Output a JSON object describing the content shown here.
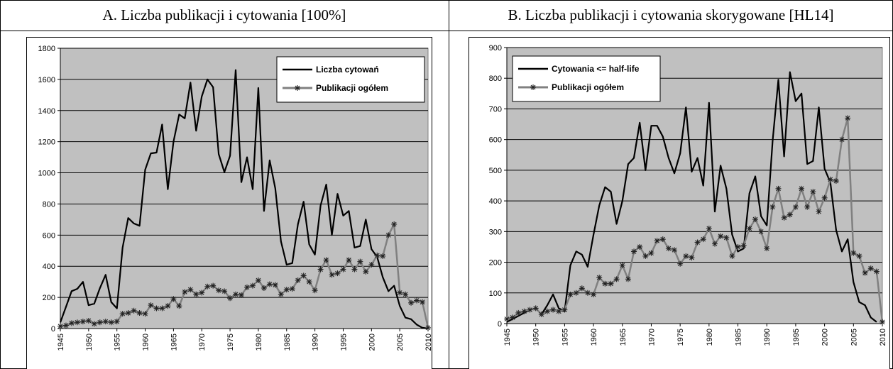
{
  "chart_data": [
    {
      "type": "line",
      "title": "A. Liczba publikacji i cytowania [100%]",
      "x": [
        1945,
        1946,
        1947,
        1948,
        1949,
        1950,
        1951,
        1952,
        1953,
        1954,
        1955,
        1956,
        1957,
        1958,
        1959,
        1960,
        1961,
        1962,
        1963,
        1964,
        1965,
        1966,
        1967,
        1968,
        1969,
        1970,
        1971,
        1972,
        1973,
        1974,
        1975,
        1976,
        1977,
        1978,
        1979,
        1980,
        1981,
        1982,
        1983,
        1984,
        1985,
        1986,
        1987,
        1988,
        1989,
        1990,
        1991,
        1992,
        1993,
        1994,
        1995,
        1996,
        1997,
        1998,
        1999,
        2000,
        2001,
        2002,
        2003,
        2004,
        2005,
        2006,
        2007,
        2008,
        2009,
        2010
      ],
      "series": [
        {
          "name": "Liczba cytowań",
          "color": "#000000",
          "marker": false,
          "values": [
            40,
            140,
            240,
            255,
            300,
            150,
            160,
            260,
            345,
            170,
            130,
            520,
            710,
            675,
            660,
            1020,
            1125,
            1130,
            1310,
            895,
            1200,
            1375,
            1350,
            1580,
            1270,
            1490,
            1600,
            1550,
            1120,
            1005,
            1110,
            1660,
            940,
            1100,
            895,
            1545,
            755,
            1080,
            900,
            560,
            410,
            420,
            670,
            815,
            540,
            475,
            790,
            925,
            600,
            865,
            725,
            755,
            520,
            530,
            700,
            510,
            460,
            330,
            240,
            275,
            145,
            70,
            60,
            25,
            5,
            0
          ]
        },
        {
          "name": "Publikacji ogółem",
          "color": "#808080",
          "marker": true,
          "values": [
            15,
            20,
            35,
            40,
            45,
            50,
            30,
            40,
            45,
            40,
            45,
            95,
            100,
            115,
            100,
            95,
            150,
            130,
            130,
            145,
            190,
            145,
            235,
            250,
            220,
            230,
            270,
            275,
            245,
            240,
            195,
            220,
            215,
            265,
            275,
            310,
            260,
            285,
            280,
            220,
            250,
            255,
            310,
            340,
            300,
            245,
            380,
            440,
            345,
            355,
            380,
            440,
            380,
            430,
            365,
            410,
            470,
            465,
            600,
            670,
            230,
            220,
            165,
            180,
            170,
            5
          ]
        }
      ],
      "xlim": [
        1945,
        2010
      ],
      "xticks": [
        1945,
        1950,
        1955,
        1960,
        1965,
        1970,
        1975,
        1980,
        1985,
        1990,
        1995,
        2000,
        2005,
        2010
      ],
      "ylim": [
        0,
        1800
      ],
      "yticks": [
        0,
        200,
        400,
        600,
        800,
        1000,
        1200,
        1400,
        1600,
        1800
      ],
      "grid": true,
      "legend": "upper right"
    },
    {
      "type": "line",
      "title": "B. Liczba publikacji i cytowania skorygowane [HL14]",
      "x": [
        1945,
        1946,
        1947,
        1948,
        1949,
        1950,
        1951,
        1952,
        1953,
        1954,
        1955,
        1956,
        1957,
        1958,
        1959,
        1960,
        1961,
        1962,
        1963,
        1964,
        1965,
        1966,
        1967,
        1968,
        1969,
        1970,
        1971,
        1972,
        1973,
        1974,
        1975,
        1976,
        1977,
        1978,
        1979,
        1980,
        1981,
        1982,
        1983,
        1984,
        1985,
        1986,
        1987,
        1988,
        1989,
        1990,
        1991,
        1992,
        1993,
        1994,
        1995,
        1996,
        1997,
        1998,
        1999,
        2000,
        2001,
        2002,
        2003,
        2004,
        2005,
        2006,
        2007,
        2008,
        2009,
        2010
      ],
      "series": [
        {
          "name": "Cytowania <= half-life",
          "color": "#000000",
          "marker": false,
          "values": [
            5,
            15,
            25,
            35,
            45,
            50,
            30,
            60,
            95,
            50,
            40,
            190,
            235,
            225,
            185,
            290,
            385,
            445,
            430,
            325,
            400,
            520,
            540,
            655,
            500,
            645,
            645,
            610,
            540,
            490,
            555,
            705,
            495,
            540,
            450,
            720,
            365,
            515,
            440,
            290,
            235,
            245,
            425,
            480,
            350,
            320,
            595,
            795,
            545,
            820,
            725,
            750,
            520,
            530,
            705,
            505,
            460,
            305,
            235,
            275,
            135,
            70,
            60,
            20,
            5,
            null
          ]
        },
        {
          "name": "Publikacji ogółem",
          "color": "#808080",
          "marker": true,
          "values": [
            15,
            20,
            35,
            40,
            45,
            50,
            30,
            40,
            45,
            40,
            45,
            95,
            100,
            115,
            100,
            95,
            150,
            130,
            130,
            145,
            190,
            145,
            235,
            250,
            220,
            230,
            270,
            275,
            245,
            240,
            195,
            220,
            215,
            265,
            275,
            310,
            260,
            285,
            280,
            220,
            250,
            255,
            310,
            340,
            300,
            245,
            380,
            440,
            345,
            355,
            380,
            440,
            380,
            430,
            365,
            410,
            470,
            465,
            600,
            670,
            230,
            220,
            165,
            180,
            170,
            5
          ]
        }
      ],
      "xlim": [
        1945,
        2010
      ],
      "xticks": [
        1945,
        1950,
        1955,
        1960,
        1965,
        1970,
        1975,
        1980,
        1985,
        1990,
        1995,
        2000,
        2005,
        2010
      ],
      "ylim": [
        0,
        900
      ],
      "yticks": [
        0,
        100,
        200,
        300,
        400,
        500,
        600,
        700,
        800,
        900
      ],
      "grid": true,
      "legend": "upper left"
    }
  ]
}
